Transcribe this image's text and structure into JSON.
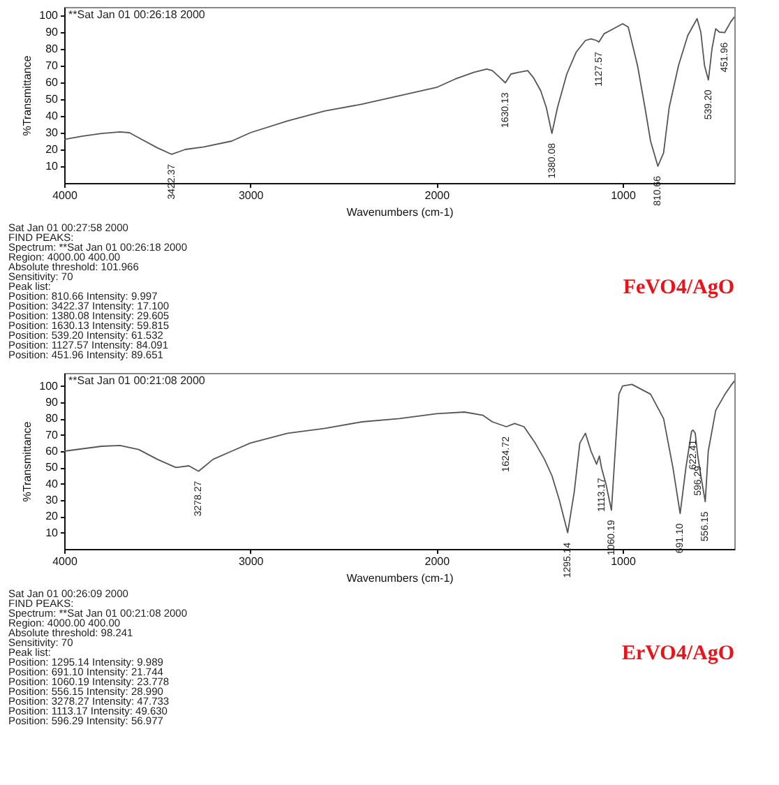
{
  "chart_data": [
    {
      "type": "line",
      "title": "FeVO4/AgO",
      "xlabel": "Wavenumbers (cm-1)",
      "ylabel": "%Transmittance",
      "xlim": [
        4000,
        400
      ],
      "ylim": [
        0,
        105
      ],
      "xticks": [
        4000,
        3000,
        2000,
        1000
      ],
      "yticks": [
        10,
        20,
        30,
        40,
        50,
        60,
        70,
        80,
        90,
        100
      ],
      "series": [
        {
          "name": "**Sat Jan 01 00:26:18 2000",
          "color": "#555555",
          "x": [
            4000,
            3900,
            3800,
            3700,
            3650,
            3600,
            3500,
            3422.37,
            3350,
            3250,
            3100,
            3000,
            2800,
            2600,
            2400,
            2200,
            2000,
            1900,
            1800,
            1730,
            1700,
            1660,
            1630.13,
            1600,
            1560,
            1510,
            1480,
            1440,
            1410,
            1380.08,
            1350,
            1300,
            1250,
            1200,
            1170,
            1140,
            1127.57,
            1100,
            1050,
            1000,
            970,
            920,
            880,
            850,
            810.66,
            780,
            750,
            700,
            650,
            600,
            580,
            560,
            539.2,
            520,
            500,
            480,
            451.96,
            420,
            400
          ],
          "values": [
            26,
            28,
            29.5,
            30.5,
            30,
            27,
            21,
            17.1,
            20,
            21.5,
            25,
            30,
            37,
            43,
            47,
            52,
            57,
            62,
            66,
            68,
            67,
            63,
            59.8,
            65,
            66,
            67,
            63,
            55,
            45,
            29.6,
            45,
            65,
            78,
            85,
            86,
            85,
            84.1,
            89,
            92,
            95,
            93,
            70,
            45,
            25,
            10,
            18,
            45,
            70,
            88,
            98,
            90,
            70,
            61.5,
            80,
            92,
            90,
            89.7,
            96,
            99
          ]
        }
      ],
      "annotations": [
        {
          "text": "3422.37",
          "x": 3422.37,
          "y": 17.1
        },
        {
          "text": "1630.13",
          "x": 1630.13,
          "y": 59.8
        },
        {
          "text": "1380.08",
          "x": 1380.08,
          "y": 29.6
        },
        {
          "text": "1127.57",
          "x": 1127.57,
          "y": 84.1
        },
        {
          "text": "810.66",
          "x": 810.66,
          "y": 10
        },
        {
          "text": "539.20",
          "x": 539.2,
          "y": 61.5
        },
        {
          "text": "451.96",
          "x": 451.96,
          "y": 89.7
        },
        "Sat Jan 01 00:27:58 2000",
        "FIND PEAKS:",
        "Spectrum: **Sat Jan 01 00:26:18 2000",
        "Region: 4000.00 400.00",
        "Absolute threshold: 101.966",
        "Sensitivity: 70",
        "Peak list:",
        "Position: 810.66 Intensity: 9.997",
        "Position: 3422.37 Intensity: 17.100",
        "Position: 1380.08 Intensity: 29.605",
        "Position: 1630.13 Intensity: 59.815",
        "Position: 539.20 Intensity: 61.532",
        "Position: 1127.57 Intensity: 84.091",
        "Position: 451.96 Intensity: 89.651"
      ]
    },
    {
      "type": "line",
      "title": "ErVO4/AgO",
      "xlabel": "Wavenumbers (cm-1)",
      "ylabel": "%Transmittance",
      "xlim": [
        4000,
        400
      ],
      "ylim": [
        0,
        108
      ],
      "xticks": [
        4000,
        3000,
        2000,
        1000
      ],
      "yticks": [
        10,
        20,
        30,
        40,
        50,
        60,
        70,
        80,
        90,
        100
      ],
      "series": [
        {
          "name": "**Sat Jan 01 00:21:08 2000",
          "color": "#555555",
          "x": [
            4000,
            3800,
            3700,
            3600,
            3500,
            3400,
            3330,
            3278.27,
            3200,
            3100,
            3000,
            2800,
            2600,
            2400,
            2200,
            2000,
            1850,
            1750,
            1700,
            1624.72,
            1580,
            1530,
            1470,
            1420,
            1380,
            1340,
            1295.14,
            1260,
            1230,
            1200,
            1170,
            1140,
            1125,
            1113.17,
            1090,
            1060.19,
            1040,
            1020,
            1000,
            950,
            850,
            780,
            730,
            691.1,
            660,
            630,
            622.41,
            610,
            596.29,
            580,
            556.15,
            540,
            500,
            450,
            420,
            400
          ],
          "values": [
            60,
            63,
            63.5,
            61,
            55,
            50,
            51,
            47.7,
            55,
            60,
            65,
            71,
            74,
            78,
            80,
            83,
            84,
            82,
            78,
            75,
            77,
            75,
            65,
            55,
            45,
            30,
            10,
            35,
            65,
            71,
            60,
            52,
            57,
            49.6,
            40,
            23.8,
            60,
            95,
            100,
            101,
            95,
            80,
            50,
            21.7,
            50,
            72,
            73,
            71,
            57,
            45,
            29,
            60,
            85,
            95,
            100,
            103
          ]
        }
      ],
      "annotations": [
        {
          "text": "3278.27",
          "x": 3278.27,
          "y": 47.7
        },
        {
          "text": "1624.72",
          "x": 1624.72,
          "y": 75
        },
        {
          "text": "1295.14",
          "x": 1295.14,
          "y": 10
        },
        {
          "text": "1113.17",
          "x": 1113.17,
          "y": 49.6
        },
        {
          "text": "1060.19",
          "x": 1060.19,
          "y": 23.8
        },
        {
          "text": "691.10",
          "x": 691.1,
          "y": 21.7
        },
        {
          "text": "622.41",
          "x": 622.41,
          "y": 73
        },
        {
          "text": "596.29",
          "x": 596.29,
          "y": 57
        },
        {
          "text": "556.15",
          "x": 556.15,
          "y": 29
        },
        "Sat Jan 01 00:26:09 2000",
        "FIND PEAKS:",
        "Spectrum: **Sat Jan 01 00:21:08 2000",
        "Region: 4000.00 400.00",
        "Absolute threshold: 98.241",
        "Sensitivity: 70",
        "Peak list:",
        "Position: 1295.14 Intensity: 9.989",
        "Position: 691.10 Intensity: 21.744",
        "Position: 1060.19 Intensity: 23.778",
        "Position: 556.15 Intensity: 28.990",
        "Position: 3278.27 Intensity: 47.733",
        "Position: 1113.17 Intensity: 49.630",
        "Position: 596.29 Intensity: 56.977"
      ]
    }
  ]
}
